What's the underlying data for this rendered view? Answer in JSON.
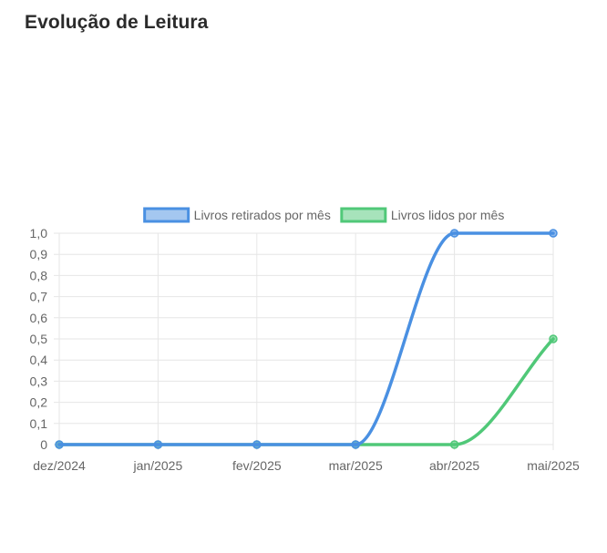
{
  "page": {
    "title": "Evolução de Leitura"
  },
  "colors": {
    "series_retirados": "#4a90e2",
    "series_lidos": "#50c878",
    "grid": "#e6e6e6",
    "text": "#666666",
    "title": "#2b2b2b"
  },
  "chart_data": {
    "type": "line",
    "title": "",
    "xlabel": "",
    "ylabel": "",
    "categories": [
      "dez/2024",
      "jan/2025",
      "fev/2025",
      "mar/2025",
      "abr/2025",
      "mai/2025"
    ],
    "series": [
      {
        "name": "Livros retirados por mês",
        "values": [
          0,
          0,
          0,
          0,
          1,
          1
        ],
        "color": "#4a90e2"
      },
      {
        "name": "Livros lidos por mês",
        "values": [
          0,
          0,
          0,
          0,
          0,
          0.5
        ],
        "color": "#50c878"
      }
    ],
    "ylim": [
      0,
      1
    ],
    "yticks": [
      "0",
      "0,1",
      "0,2",
      "0,3",
      "0,4",
      "0,5",
      "0,6",
      "0,7",
      "0,8",
      "0,9",
      "1,0"
    ],
    "grid": true,
    "legend_position": "top-center",
    "curve": "smooth"
  }
}
